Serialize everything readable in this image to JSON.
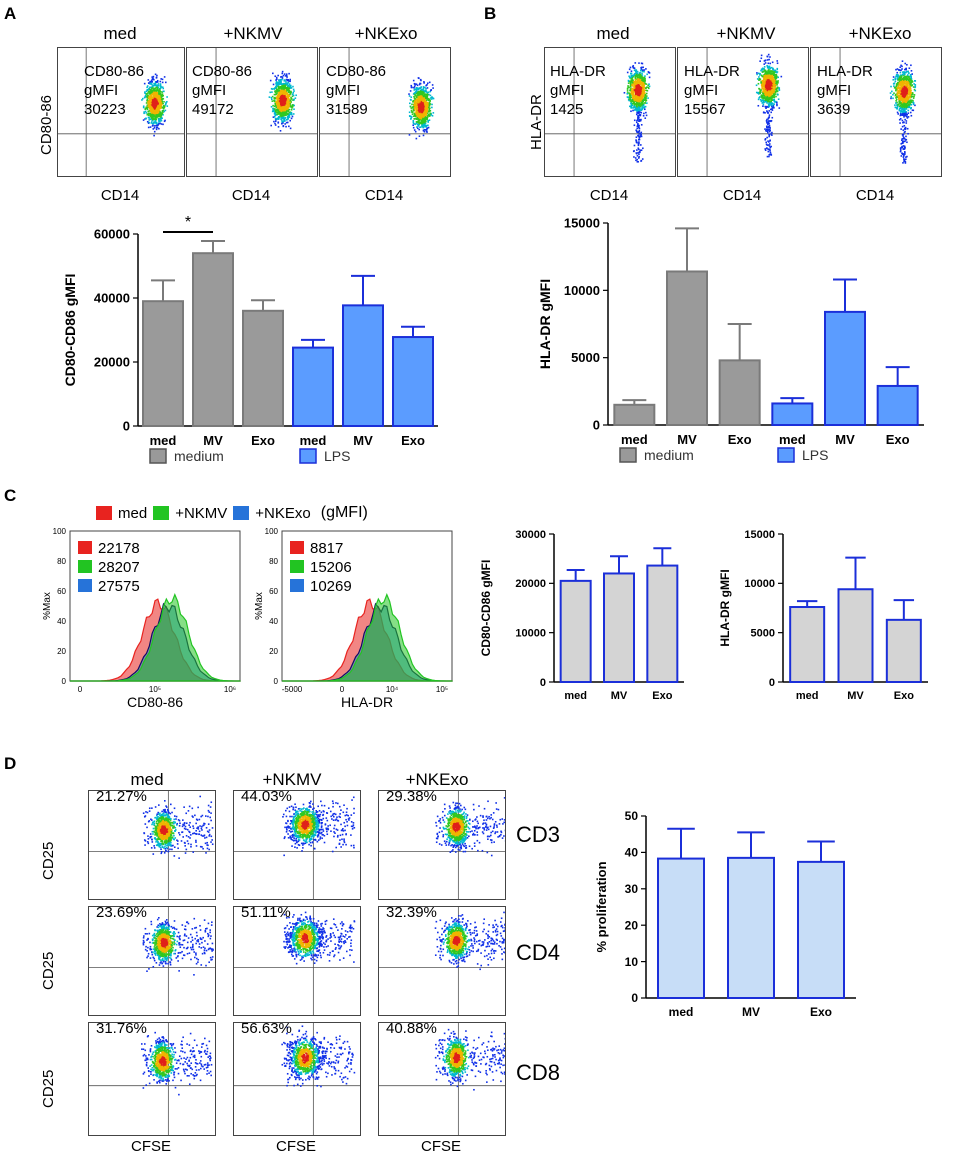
{
  "figure": {
    "panels": {
      "A": {
        "letter": "A",
        "flow_titles": [
          "med",
          "+NKMV",
          "+NKExo"
        ],
        "flow_marker": "CD80-86",
        "flow_metric": "gMFI",
        "flow_values": [
          "30223",
          "49172",
          "31589"
        ],
        "x_axis": "CD14",
        "y_axis": "CD80-86"
      },
      "B": {
        "letter": "B",
        "flow_titles": [
          "med",
          "+NKMV",
          "+NKExo"
        ],
        "flow_marker": "HLA-DR",
        "flow_metric": "gMFI",
        "flow_values": [
          "1425",
          "15567",
          "3639"
        ],
        "x_axis": "CD14",
        "y_axis": "HLA-DR"
      },
      "C": {
        "letter": "C",
        "legend": [
          {
            "label": "med",
            "color": "#e8231f"
          },
          {
            "label": "+NKMV",
            "color": "#22c422"
          },
          {
            "label": "+NKExo",
            "color": "#2673d9"
          }
        ],
        "legend_suffix": "(gMFI)",
        "hist1": {
          "x_axis": "CD80-86",
          "y_axis": "%Max",
          "values": [
            "22178",
            "28207",
            "27575"
          ],
          "y_ticks": [
            "100",
            "80",
            "60",
            "40",
            "20",
            "0"
          ],
          "x_ticks": [
            "0",
            "10⁵",
            "10⁶"
          ]
        },
        "hist2": {
          "x_axis": "HLA-DR",
          "y_axis": "%Max",
          "values": [
            "8817",
            "15206",
            "10269"
          ],
          "y_ticks": [
            "100",
            "80",
            "60",
            "40",
            "20",
            "0"
          ],
          "x_ticks": [
            "-5000",
            "0",
            "10⁴",
            "10⁵"
          ]
        }
      },
      "D": {
        "letter": "D",
        "col_titles": [
          "med",
          "+NKMV",
          "+NKExo"
        ],
        "row_labels": [
          "CD3",
          "CD4",
          "CD8"
        ],
        "y_axis": "CD25",
        "x_axis": "CFSE",
        "percentages": [
          [
            "21.27%",
            "44.03%",
            "29.38%"
          ],
          [
            "23.69%",
            "51.11%",
            "32.39%"
          ],
          [
            "31.76%",
            "56.63%",
            "40.88%"
          ]
        ]
      }
    }
  },
  "chart_data": [
    {
      "id": "A-bar",
      "type": "bar",
      "categories": [
        "med",
        "MV",
        "Exo",
        "med",
        "MV",
        "Exo"
      ],
      "values": [
        39000,
        54000,
        36000,
        24500,
        37700,
        27800
      ],
      "errors": [
        6500,
        3800,
        3300,
        2400,
        9200,
        3200
      ],
      "groups": [
        "medium",
        "medium",
        "medium",
        "LPS",
        "LPS",
        "LPS"
      ],
      "ylabel": "CD80-CD86 gMFI",
      "ylim": [
        0,
        60000
      ],
      "yticks": [
        "0",
        "20000",
        "40000",
        "60000"
      ],
      "legend": [
        {
          "label": "medium",
          "color": "#999999"
        },
        {
          "label": "LPS",
          "color": "#5b9cff"
        }
      ],
      "significance": "*"
    },
    {
      "id": "B-bar",
      "type": "bar",
      "categories": [
        "med",
        "MV",
        "Exo",
        "med",
        "MV",
        "Exo"
      ],
      "values": [
        1500,
        11400,
        4800,
        1600,
        8400,
        2900
      ],
      "errors": [
        350,
        3200,
        2700,
        400,
        2400,
        1400
      ],
      "groups": [
        "medium",
        "medium",
        "medium",
        "LPS",
        "LPS",
        "LPS"
      ],
      "ylabel": "HLA-DR gMFI",
      "ylim": [
        0,
        15000
      ],
      "yticks": [
        "0",
        "5000",
        "10000",
        "15000"
      ],
      "legend": [
        {
          "label": "medium",
          "color": "#999999"
        },
        {
          "label": "LPS",
          "color": "#5b9cff"
        }
      ]
    },
    {
      "id": "C-bar1",
      "type": "bar",
      "categories": [
        "med",
        "MV",
        "Exo"
      ],
      "values": [
        20500,
        22000,
        23600
      ],
      "errors": [
        2200,
        3500,
        3500
      ],
      "ylabel": "CD80-CD86 gMFI",
      "ylim": [
        0,
        30000
      ],
      "yticks": [
        "0",
        "10000",
        "20000",
        "30000"
      ]
    },
    {
      "id": "C-bar2",
      "type": "bar",
      "categories": [
        "med",
        "MV",
        "Exo"
      ],
      "values": [
        7600,
        9400,
        6300
      ],
      "errors": [
        600,
        3200,
        2000
      ],
      "ylabel": "HLA-DR gMFI",
      "ylim": [
        0,
        15000
      ],
      "yticks": [
        "0",
        "5000",
        "10000",
        "15000"
      ]
    },
    {
      "id": "D-bar",
      "type": "bar",
      "categories": [
        "med",
        "MV",
        "Exo"
      ],
      "values": [
        38.3,
        38.5,
        37.4
      ],
      "errors": [
        8.2,
        7.0,
        5.6
      ],
      "ylabel": "% proliferation",
      "ylim": [
        0,
        50
      ],
      "yticks": [
        "0",
        "10",
        "20",
        "30",
        "40",
        "50"
      ]
    }
  ]
}
